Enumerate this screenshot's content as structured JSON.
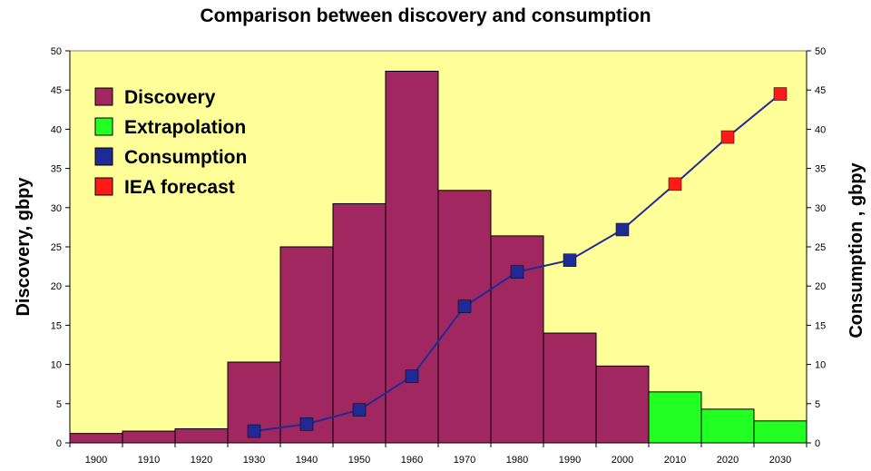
{
  "chart_data": {
    "type": "bar",
    "title": "Comparison between discovery and consumption",
    "ylabel_left": "Discovery, gbpy",
    "ylabel_right": "Consumption , gbpy",
    "xlabel": "",
    "categories": [
      "1900",
      "1910",
      "1920",
      "1930",
      "1940",
      "1950",
      "1960",
      "1970",
      "1980",
      "1990",
      "2000",
      "2010",
      "2020",
      "2030"
    ],
    "ylim": [
      0,
      50
    ],
    "yticks": [
      0,
      5,
      10,
      15,
      20,
      25,
      30,
      35,
      40,
      45,
      50
    ],
    "grid": false,
    "legend_position": "top-left",
    "background_color": "#ffff99",
    "series": [
      {
        "name": "Discovery",
        "kind": "bar",
        "color": "#a0275f",
        "values": [
          1.2,
          1.5,
          1.8,
          10.3,
          25.0,
          30.5,
          47.4,
          32.2,
          26.4,
          14.0,
          9.8,
          null,
          null,
          null
        ]
      },
      {
        "name": "Extrapolation",
        "kind": "bar",
        "color": "#22ff22",
        "values": [
          null,
          null,
          null,
          null,
          null,
          null,
          null,
          null,
          null,
          null,
          null,
          6.5,
          4.3,
          2.8
        ]
      },
      {
        "name": "Consumption",
        "kind": "line",
        "color": "#1f2a96",
        "values": [
          null,
          null,
          null,
          1.5,
          2.4,
          4.2,
          8.5,
          17.4,
          21.8,
          23.3,
          27.2,
          null,
          null,
          null
        ]
      },
      {
        "name": "IEA forecast",
        "kind": "line",
        "color": "#ff1a1a",
        "values": [
          null,
          null,
          null,
          null,
          null,
          null,
          null,
          null,
          null,
          null,
          null,
          33.0,
          39.0,
          44.5
        ]
      }
    ]
  }
}
